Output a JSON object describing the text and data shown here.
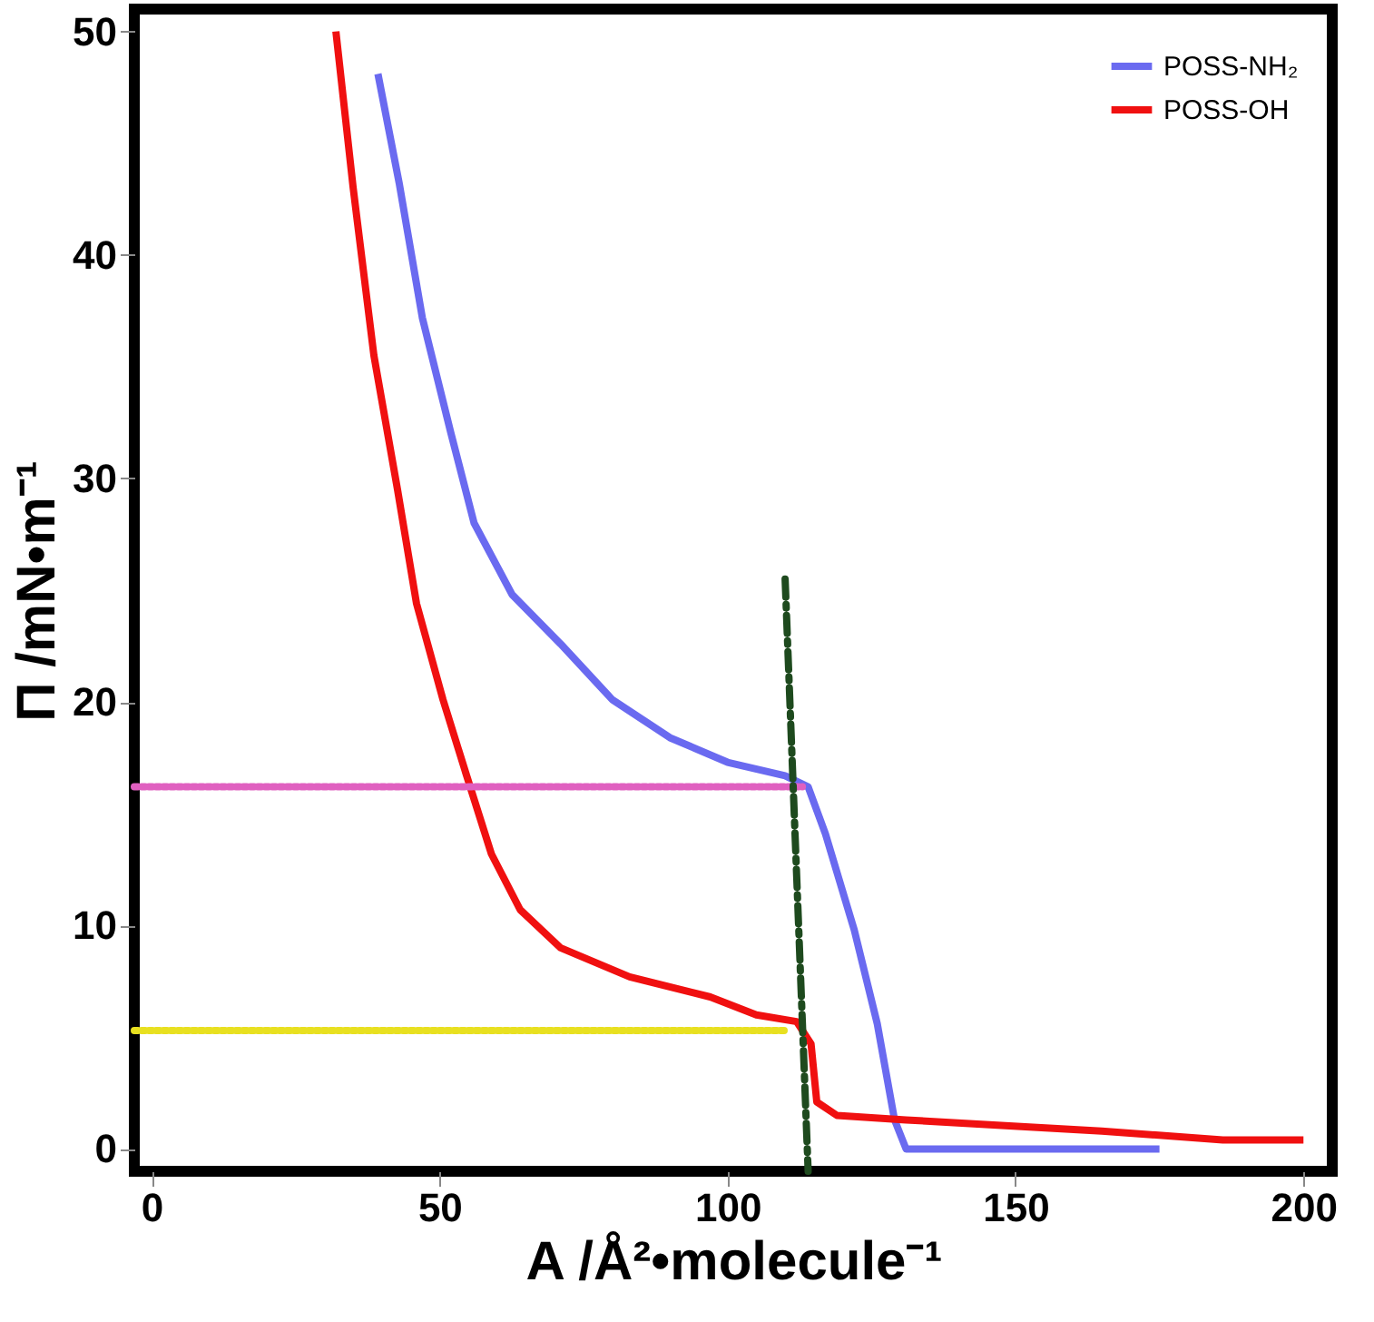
{
  "chart_data": {
    "type": "line",
    "xlabel": "A /Å²•molecule⁻¹",
    "ylabel": "Π /mN•m⁻¹",
    "xlim": [
      -3,
      205
    ],
    "ylim": [
      -1,
      51
    ],
    "xticks": [
      0,
      50,
      100,
      150,
      200
    ],
    "yticks": [
      0,
      10,
      20,
      30,
      40,
      50
    ],
    "grid": false,
    "legend": "top right",
    "marker": "none",
    "series": [
      {
        "name": "POSS-NH₂",
        "color": "#6a6af0",
        "line_style": "solid",
        "x": [
          39.3,
          43,
          47,
          52,
          56,
          62.6,
          71,
          80,
          90,
          100,
          110,
          114,
          117,
          122,
          126,
          129,
          131,
          150,
          175
        ],
        "values": [
          48.1,
          43.2,
          37.2,
          32,
          28,
          24.8,
          22.6,
          20.1,
          18.4,
          17.3,
          16.7,
          16.2,
          14.1,
          9.8,
          5.6,
          1.3,
          0,
          0,
          0
        ]
      },
      {
        "name": "POSS-OH",
        "color": "#f01010",
        "line_style": "solid",
        "x": [
          32,
          35,
          38.6,
          42.7,
          46,
          50.6,
          54.7,
          59,
          64,
          71,
          83,
          97,
          105,
          112,
          114.5,
          115.5,
          119,
          131,
          151,
          165,
          186,
          200
        ],
        "values": [
          50,
          43,
          35.5,
          29.5,
          24.4,
          20.1,
          16.7,
          13.2,
          10.7,
          9,
          7.7,
          6.8,
          6,
          5.7,
          4.7,
          2.1,
          1.5,
          1.3,
          1,
          0.8,
          0.4,
          0.4
        ]
      },
      {
        "color": "#e060c0",
        "line_style": "dotted",
        "x": [
          -3,
          113
        ],
        "values": [
          16.2,
          16.2
        ]
      },
      {
        "color": "#e8e020",
        "line_style": "dotted",
        "x": [
          -3,
          110
        ],
        "values": [
          5.3,
          5.3
        ]
      },
      {
        "color": "#1e4a1e",
        "line_style": "dashed",
        "x": [
          110,
          114
        ],
        "values": [
          25.5,
          -1
        ]
      }
    ]
  }
}
